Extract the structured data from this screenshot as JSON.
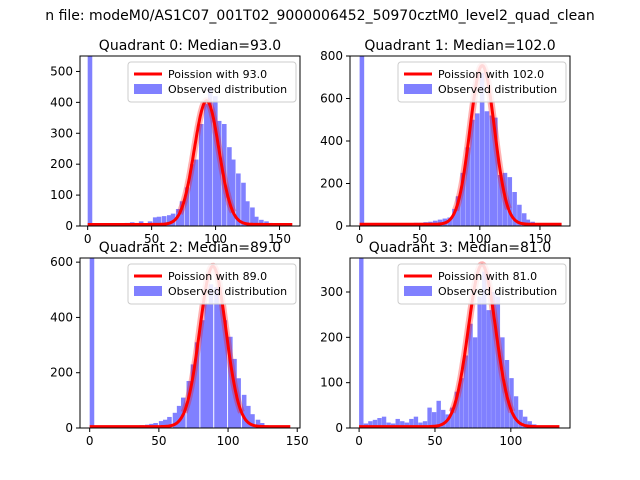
{
  "figure": {
    "suptitle": "n file: modeM0/AS1C07_001T02_9000006452_50970cztM0_level2_quad_clean"
  },
  "legend": {
    "poisson_prefix": "Poission with",
    "observed_label": "Observed distribution"
  },
  "colors": {
    "fit_line": "#ff0000",
    "histogram": "#8080ff",
    "axis": "#000000"
  },
  "chart_data": [
    {
      "type": "bar",
      "title": "Quadrant 0: Median=93.0",
      "median": 93.0,
      "poisson_label": "Poission with 93.0",
      "xlim": [
        -6,
        166
      ],
      "ylim": [
        0,
        550
      ],
      "xticks": [
        0,
        50,
        100,
        150
      ],
      "yticks": [
        0,
        100,
        200,
        300,
        400,
        500
      ],
      "bin_width": 3.6,
      "bins": [
        {
          "x": 0,
          "y": 550
        },
        {
          "x": 25,
          "y": 5
        },
        {
          "x": 29,
          "y": 10
        },
        {
          "x": 33,
          "y": 12
        },
        {
          "x": 36,
          "y": 10
        },
        {
          "x": 40,
          "y": 15
        },
        {
          "x": 44,
          "y": 8
        },
        {
          "x": 47,
          "y": 15
        },
        {
          "x": 51,
          "y": 28
        },
        {
          "x": 54,
          "y": 30
        },
        {
          "x": 58,
          "y": 32
        },
        {
          "x": 62,
          "y": 35
        },
        {
          "x": 65,
          "y": 40
        },
        {
          "x": 69,
          "y": 55
        },
        {
          "x": 72,
          "y": 80
        },
        {
          "x": 76,
          "y": 125
        },
        {
          "x": 80,
          "y": 200
        },
        {
          "x": 83,
          "y": 215
        },
        {
          "x": 87,
          "y": 330
        },
        {
          "x": 91,
          "y": 395
        },
        {
          "x": 94,
          "y": 450
        },
        {
          "x": 98,
          "y": 420
        },
        {
          "x": 101,
          "y": 340
        },
        {
          "x": 105,
          "y": 330
        },
        {
          "x": 109,
          "y": 255
        },
        {
          "x": 112,
          "y": 215
        },
        {
          "x": 116,
          "y": 170
        },
        {
          "x": 120,
          "y": 140
        },
        {
          "x": 123,
          "y": 80
        },
        {
          "x": 127,
          "y": 60
        },
        {
          "x": 130,
          "y": 30
        },
        {
          "x": 134,
          "y": 20
        },
        {
          "x": 138,
          "y": 15
        },
        {
          "x": 141,
          "y": 10
        },
        {
          "x": 145,
          "y": 5
        },
        {
          "x": 149,
          "y": 3
        },
        {
          "x": 152,
          "y": 2
        }
      ],
      "fit": {
        "mu": 93.0,
        "peak": 405,
        "floor": 5,
        "x_range": [
          0,
          160
        ]
      }
    },
    {
      "type": "bar",
      "title": "Quadrant 1: Median=102.0",
      "median": 102.0,
      "poisson_label": "Poission with 102.0",
      "xlim": [
        -8,
        175
      ],
      "ylim": [
        0,
        800
      ],
      "xticks": [
        0,
        50,
        100,
        150
      ],
      "yticks": [
        0,
        200,
        400,
        600,
        800
      ],
      "bin_width": 3.8,
      "bins": [
        {
          "x": 0,
          "y": 800
        },
        {
          "x": 30,
          "y": 8
        },
        {
          "x": 45,
          "y": 15
        },
        {
          "x": 49,
          "y": 15
        },
        {
          "x": 53,
          "y": 18
        },
        {
          "x": 57,
          "y": 20
        },
        {
          "x": 61,
          "y": 25
        },
        {
          "x": 65,
          "y": 30
        },
        {
          "x": 69,
          "y": 35
        },
        {
          "x": 73,
          "y": 40
        },
        {
          "x": 77,
          "y": 80
        },
        {
          "x": 80,
          "y": 140
        },
        {
          "x": 84,
          "y": 250
        },
        {
          "x": 88,
          "y": 370
        },
        {
          "x": 92,
          "y": 500
        },
        {
          "x": 96,
          "y": 530
        },
        {
          "x": 100,
          "y": 720
        },
        {
          "x": 104,
          "y": 540
        },
        {
          "x": 108,
          "y": 520
        },
        {
          "x": 111,
          "y": 510
        },
        {
          "x": 115,
          "y": 240
        },
        {
          "x": 119,
          "y": 250
        },
        {
          "x": 123,
          "y": 230
        },
        {
          "x": 127,
          "y": 160
        },
        {
          "x": 131,
          "y": 100
        },
        {
          "x": 135,
          "y": 60
        },
        {
          "x": 138,
          "y": 30
        },
        {
          "x": 142,
          "y": 20
        },
        {
          "x": 146,
          "y": 10
        },
        {
          "x": 150,
          "y": 5
        },
        {
          "x": 154,
          "y": 3
        }
      ],
      "fit": {
        "mu": 102.0,
        "peak": 755,
        "floor": 8,
        "x_range": [
          0,
          168
        ]
      }
    },
    {
      "type": "bar",
      "title": "Quadrant 2: Median=89.0",
      "median": 89.0,
      "poisson_label": "Poission with 89.0",
      "xlim": [
        -7,
        152
      ],
      "ylim": [
        0,
        615
      ],
      "xticks": [
        0,
        50,
        100,
        150
      ],
      "yticks": [
        0,
        200,
        400,
        600
      ],
      "bin_width": 3.3,
      "bins": [
        {
          "x": 0,
          "y": 615
        },
        {
          "x": 25,
          "y": 5
        },
        {
          "x": 29,
          "y": 6
        },
        {
          "x": 33,
          "y": 8
        },
        {
          "x": 36,
          "y": 10
        },
        {
          "x": 40,
          "y": 12
        },
        {
          "x": 43,
          "y": 15
        },
        {
          "x": 46,
          "y": 18
        },
        {
          "x": 50,
          "y": 25
        },
        {
          "x": 53,
          "y": 30
        },
        {
          "x": 56,
          "y": 40
        },
        {
          "x": 60,
          "y": 55
        },
        {
          "x": 63,
          "y": 80
        },
        {
          "x": 66,
          "y": 110
        },
        {
          "x": 70,
          "y": 170
        },
        {
          "x": 73,
          "y": 230
        },
        {
          "x": 76,
          "y": 310
        },
        {
          "x": 80,
          "y": 390
        },
        {
          "x": 83,
          "y": 450
        },
        {
          "x": 86,
          "y": 520
        },
        {
          "x": 90,
          "y": 510
        },
        {
          "x": 93,
          "y": 450
        },
        {
          "x": 96,
          "y": 390
        },
        {
          "x": 100,
          "y": 330
        },
        {
          "x": 103,
          "y": 250
        },
        {
          "x": 106,
          "y": 180
        },
        {
          "x": 110,
          "y": 120
        },
        {
          "x": 113,
          "y": 80
        },
        {
          "x": 116,
          "y": 50
        },
        {
          "x": 120,
          "y": 30
        },
        {
          "x": 123,
          "y": 18
        },
        {
          "x": 126,
          "y": 10
        },
        {
          "x": 130,
          "y": 5
        },
        {
          "x": 133,
          "y": 3
        }
      ],
      "fit": {
        "mu": 89.0,
        "peak": 585,
        "floor": 5,
        "x_range": [
          0,
          145
        ]
      }
    },
    {
      "type": "bar",
      "title": "Quadrant 3: Median=81.0",
      "median": 81.0,
      "poisson_label": "Poission with 81.0",
      "xlim": [
        -6,
        139
      ],
      "ylim": [
        0,
        375
      ],
      "xticks": [
        0,
        50,
        100
      ],
      "yticks": [
        0,
        100,
        200,
        300
      ],
      "bin_width": 2.9,
      "bins": [
        {
          "x": 0,
          "y": 375
        },
        {
          "x": 3,
          "y": 10
        },
        {
          "x": 6,
          "y": 15
        },
        {
          "x": 9,
          "y": 18
        },
        {
          "x": 12,
          "y": 22
        },
        {
          "x": 15,
          "y": 25
        },
        {
          "x": 18,
          "y": 12
        },
        {
          "x": 21,
          "y": 10
        },
        {
          "x": 24,
          "y": 20
        },
        {
          "x": 27,
          "y": 15
        },
        {
          "x": 30,
          "y": 12
        },
        {
          "x": 33,
          "y": 20
        },
        {
          "x": 36,
          "y": 25
        },
        {
          "x": 39,
          "y": 12
        },
        {
          "x": 42,
          "y": 15
        },
        {
          "x": 45,
          "y": 45
        },
        {
          "x": 48,
          "y": 35
        },
        {
          "x": 51,
          "y": 60
        },
        {
          "x": 54,
          "y": 40
        },
        {
          "x": 57,
          "y": 30
        },
        {
          "x": 60,
          "y": 45
        },
        {
          "x": 63,
          "y": 80
        },
        {
          "x": 66,
          "y": 110
        },
        {
          "x": 69,
          "y": 160
        },
        {
          "x": 72,
          "y": 230
        },
        {
          "x": 75,
          "y": 200
        },
        {
          "x": 78,
          "y": 290
        },
        {
          "x": 81,
          "y": 345
        },
        {
          "x": 84,
          "y": 260
        },
        {
          "x": 87,
          "y": 300
        },
        {
          "x": 90,
          "y": 290
        },
        {
          "x": 93,
          "y": 200
        },
        {
          "x": 96,
          "y": 150
        },
        {
          "x": 99,
          "y": 110
        },
        {
          "x": 102,
          "y": 70
        },
        {
          "x": 105,
          "y": 40
        },
        {
          "x": 108,
          "y": 25
        },
        {
          "x": 111,
          "y": 15
        },
        {
          "x": 114,
          "y": 8
        },
        {
          "x": 117,
          "y": 5
        },
        {
          "x": 120,
          "y": 3
        }
      ],
      "fit": {
        "mu": 81.0,
        "peak": 360,
        "floor": 3,
        "x_range": [
          0,
          132
        ]
      }
    }
  ]
}
